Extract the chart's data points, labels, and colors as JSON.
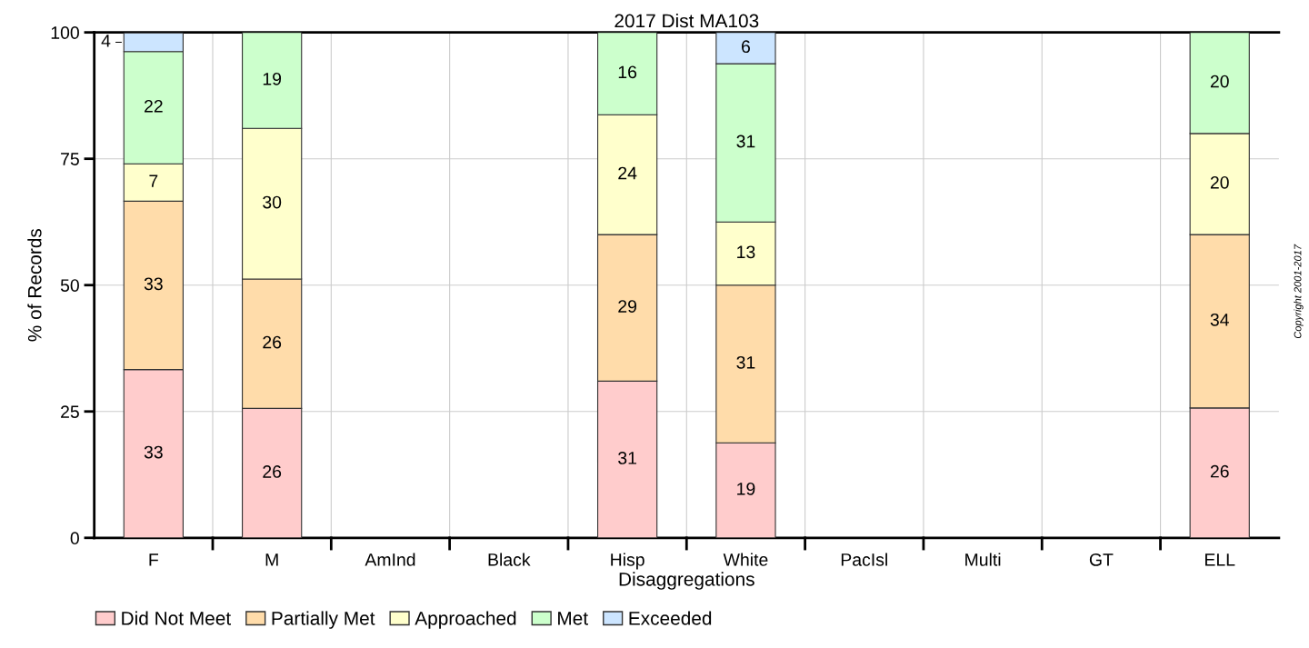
{
  "chart_data": {
    "type": "bar",
    "stacked": true,
    "title": "2017 Dist MA103",
    "xlabel": "Disaggregations",
    "ylabel": "% of Records",
    "categories": [
      "F",
      "M",
      "AmInd",
      "Black",
      "Hisp",
      "White",
      "PacIsl",
      "Multi",
      "GT",
      "ELL"
    ],
    "series": [
      {
        "name": "Did Not Meet",
        "color": "#ffcccc",
        "values": [
          33.3,
          25.6,
          null,
          null,
          31.0,
          18.8,
          null,
          null,
          null,
          25.7
        ],
        "value_labels": [
          "33",
          "26",
          null,
          null,
          "31",
          "19",
          null,
          null,
          null,
          "26"
        ]
      },
      {
        "name": "Partially Met",
        "color": "#ffdcaa",
        "values": [
          33.3,
          25.6,
          null,
          null,
          29.0,
          31.2,
          null,
          null,
          null,
          34.3
        ],
        "value_labels": [
          "33",
          "26",
          null,
          null,
          "29",
          "31",
          null,
          null,
          null,
          "34"
        ]
      },
      {
        "name": "Approached",
        "color": "#ffffcc",
        "values": [
          7.4,
          29.8,
          null,
          null,
          23.7,
          12.5,
          null,
          null,
          null,
          20.0
        ],
        "value_labels": [
          "7",
          "30",
          null,
          null,
          "24",
          "13",
          null,
          null,
          null,
          "20"
        ]
      },
      {
        "name": "Met",
        "color": "#ccffcc",
        "values": [
          22.2,
          19.0,
          null,
          null,
          16.3,
          31.3,
          null,
          null,
          null,
          20.0
        ],
        "value_labels": [
          "22",
          "19",
          null,
          null,
          "16",
          "31",
          null,
          null,
          null,
          "20"
        ]
      },
      {
        "name": "Exceeded",
        "color": "#cce5ff",
        "values": [
          3.7,
          null,
          null,
          null,
          null,
          6.2,
          null,
          null,
          null,
          null
        ],
        "value_labels": [
          "4",
          null,
          null,
          null,
          null,
          "6",
          null,
          null,
          null,
          null
        ]
      }
    ],
    "ylim": [
      0,
      100
    ],
    "yticks": [
      0,
      25,
      50,
      75,
      100
    ],
    "grid": true,
    "legend": "bottom",
    "annotations": [
      "Copyright 2001-2017"
    ]
  }
}
